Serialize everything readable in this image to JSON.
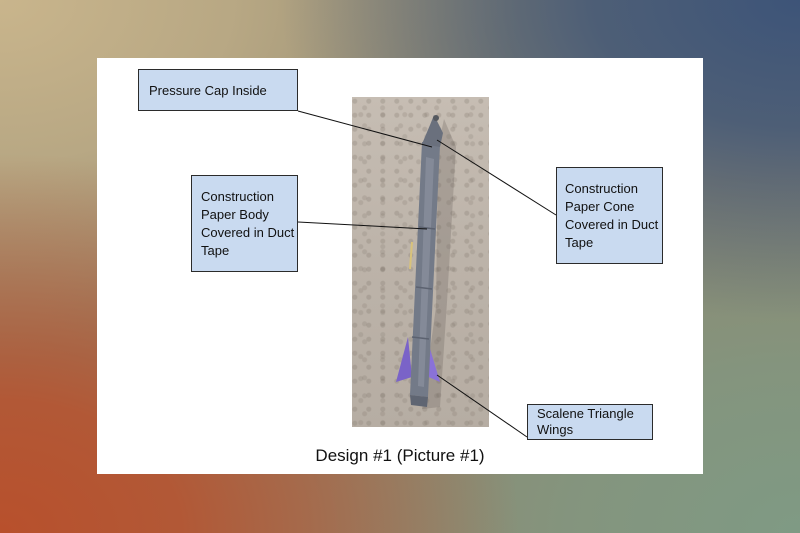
{
  "callouts": {
    "pressure_cap": "Pressure Cap Inside",
    "body": "Construction Paper Body Covered in Duct Tape",
    "cone": "Construction Paper Cone Covered in Duct Tape",
    "wings": "Scalene Triangle Wings"
  },
  "caption": "Design #1 (Picture #1)",
  "colors": {
    "callout_fill": "#c9daf0",
    "wing_purple": "#7a63c8",
    "duct_tape": "#6f7684"
  }
}
